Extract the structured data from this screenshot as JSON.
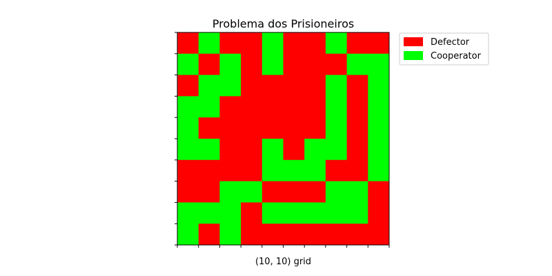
{
  "chart_data": {
    "type": "heatmap",
    "title": "Problema dos Prisioneiros",
    "xlabel": "(10, 10) grid",
    "ylabel": "",
    "legend": {
      "placement": "outside-top-right",
      "entries": [
        {
          "label": "Defector",
          "color": "#ff0000",
          "value": 0
        },
        {
          "label": "Cooperator",
          "color": "#00ff00",
          "value": 1
        }
      ]
    },
    "grid": [
      [
        0,
        1,
        0,
        0,
        1,
        0,
        0,
        1,
        0,
        0
      ],
      [
        1,
        0,
        1,
        0,
        1,
        0,
        0,
        0,
        1,
        1
      ],
      [
        0,
        1,
        1,
        0,
        0,
        0,
        0,
        1,
        0,
        1
      ],
      [
        1,
        1,
        0,
        0,
        0,
        0,
        0,
        1,
        0,
        1
      ],
      [
        1,
        0,
        0,
        0,
        0,
        0,
        0,
        1,
        0,
        1
      ],
      [
        1,
        1,
        0,
        0,
        1,
        0,
        1,
        1,
        0,
        1
      ],
      [
        0,
        0,
        0,
        0,
        1,
        1,
        1,
        0,
        0,
        1
      ],
      [
        0,
        0,
        1,
        1,
        0,
        0,
        0,
        1,
        1,
        0
      ],
      [
        1,
        1,
        1,
        0,
        1,
        1,
        1,
        1,
        1,
        0
      ],
      [
        1,
        0,
        1,
        0,
        0,
        0,
        0,
        0,
        0,
        0
      ]
    ],
    "tick_labels_shown": false
  }
}
